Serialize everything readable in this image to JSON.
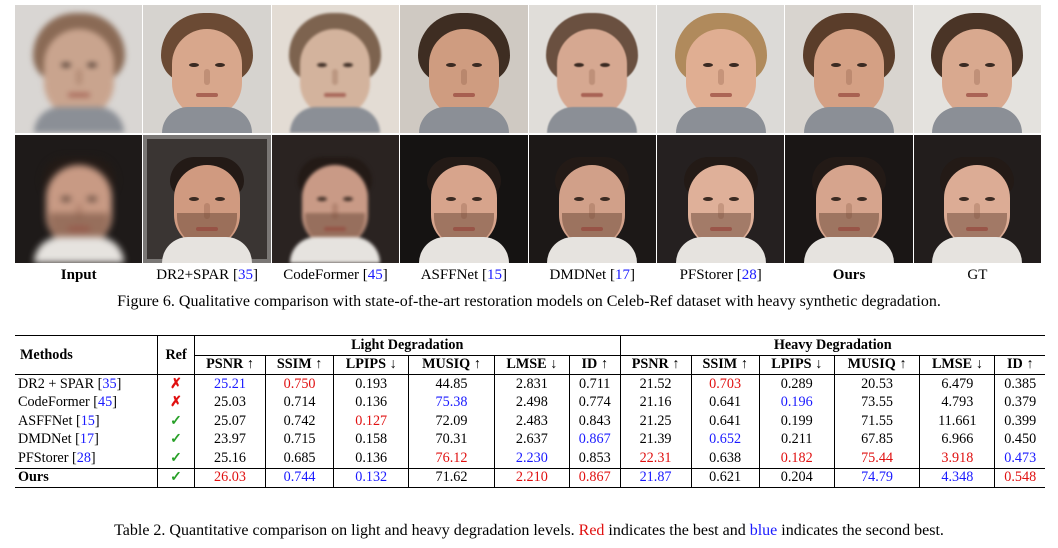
{
  "figure": {
    "columns": [
      {
        "name": "Input",
        "ref": "",
        "bold": true
      },
      {
        "name": "DR2+SPAR",
        "ref": "35",
        "bold": false
      },
      {
        "name": "CodeFormer",
        "ref": "45",
        "bold": false
      },
      {
        "name": "ASFFNet",
        "ref": "15",
        "bold": false
      },
      {
        "name": "DMDNet",
        "ref": "17",
        "bold": false
      },
      {
        "name": "PFStorer",
        "ref": "28",
        "bold": false
      },
      {
        "name": "Ours",
        "ref": "",
        "bold": true
      },
      {
        "name": "GT",
        "ref": "",
        "bold": false
      }
    ],
    "caption": "Figure 6. Qualitative comparison with state-of-the-art restoration models on Celeb-Ref dataset with heavy synthetic degradation."
  },
  "table": {
    "header": {
      "methods": "Methods",
      "ref": "Ref",
      "light": "Light Degradation",
      "heavy": "Heavy Degradation",
      "metrics": [
        {
          "name": "PSNR",
          "dir": "up"
        },
        {
          "name": "SSIM",
          "dir": "up"
        },
        {
          "name": "LPIPS",
          "dir": "down"
        },
        {
          "name": "MUSIQ",
          "dir": "up"
        },
        {
          "name": "LMSE",
          "dir": "down"
        },
        {
          "name": "ID",
          "dir": "up"
        }
      ]
    },
    "rows": [
      {
        "method": "DR2 + SPAR",
        "cite": "35",
        "ref": "cross",
        "light": [
          [
            "25.21",
            "blue"
          ],
          [
            "0.750",
            "red"
          ],
          [
            "0.193",
            ""
          ],
          [
            "44.85",
            ""
          ],
          [
            "2.831",
            ""
          ],
          [
            "0.711",
            ""
          ]
        ],
        "heavy": [
          [
            "21.52",
            ""
          ],
          [
            "0.703",
            "red"
          ],
          [
            "0.289",
            ""
          ],
          [
            "20.53",
            ""
          ],
          [
            "6.479",
            ""
          ],
          [
            "0.385",
            ""
          ]
        ]
      },
      {
        "method": "CodeFormer",
        "cite": "45",
        "ref": "cross",
        "light": [
          [
            "25.03",
            ""
          ],
          [
            "0.714",
            ""
          ],
          [
            "0.136",
            ""
          ],
          [
            "75.38",
            "blue"
          ],
          [
            "2.498",
            ""
          ],
          [
            "0.774",
            ""
          ]
        ],
        "heavy": [
          [
            "21.16",
            ""
          ],
          [
            "0.641",
            ""
          ],
          [
            "0.196",
            "blue"
          ],
          [
            "73.55",
            ""
          ],
          [
            "4.793",
            ""
          ],
          [
            "0.379",
            ""
          ]
        ]
      },
      {
        "method": "ASFFNet",
        "cite": "15",
        "ref": "check",
        "light": [
          [
            "25.07",
            ""
          ],
          [
            "0.742",
            ""
          ],
          [
            "0.127",
            "red"
          ],
          [
            "72.09",
            ""
          ],
          [
            "2.483",
            ""
          ],
          [
            "0.843",
            ""
          ]
        ],
        "heavy": [
          [
            "21.25",
            ""
          ],
          [
            "0.641",
            ""
          ],
          [
            "0.199",
            ""
          ],
          [
            "71.55",
            ""
          ],
          [
            "11.661",
            ""
          ],
          [
            "0.399",
            ""
          ]
        ]
      },
      {
        "method": "DMDNet",
        "cite": "17",
        "ref": "check",
        "light": [
          [
            "23.97",
            ""
          ],
          [
            "0.715",
            ""
          ],
          [
            "0.158",
            ""
          ],
          [
            "70.31",
            ""
          ],
          [
            "2.637",
            ""
          ],
          [
            "0.867",
            "blue"
          ]
        ],
        "heavy": [
          [
            "21.39",
            ""
          ],
          [
            "0.652",
            "blue"
          ],
          [
            "0.211",
            ""
          ],
          [
            "67.85",
            ""
          ],
          [
            "6.966",
            ""
          ],
          [
            "0.450",
            ""
          ]
        ]
      },
      {
        "method": "PFStorer",
        "cite": "28",
        "ref": "check",
        "light": [
          [
            "25.16",
            ""
          ],
          [
            "0.685",
            ""
          ],
          [
            "0.136",
            ""
          ],
          [
            "76.12",
            "red"
          ],
          [
            "2.230",
            "blue"
          ],
          [
            "0.853",
            ""
          ]
        ],
        "heavy": [
          [
            "22.31",
            "red"
          ],
          [
            "0.638",
            ""
          ],
          [
            "0.182",
            "red"
          ],
          [
            "75.44",
            "red"
          ],
          [
            "3.918",
            "red"
          ],
          [
            "0.473",
            "blue"
          ]
        ]
      },
      {
        "method": "Ours",
        "cite": "",
        "ref": "check",
        "bold": true,
        "light": [
          [
            "26.03",
            "red"
          ],
          [
            "0.744",
            "blue"
          ],
          [
            "0.132",
            "blue"
          ],
          [
            "71.62",
            ""
          ],
          [
            "2.210",
            "red"
          ],
          [
            "0.867",
            "red"
          ]
        ],
        "heavy": [
          [
            "21.87",
            "blue"
          ],
          [
            "0.621",
            ""
          ],
          [
            "0.204",
            ""
          ],
          [
            "74.79",
            "blue"
          ],
          [
            "4.348",
            "blue"
          ],
          [
            "0.548",
            "red"
          ]
        ]
      }
    ],
    "caption_parts": {
      "before": "Table 2. Quantitative comparison on light and heavy degradation levels. ",
      "red_word": "Red",
      "middle": " indicates the best and ",
      "blue_word": "blue",
      "after": " indicates the second best."
    }
  },
  "colors": {
    "best": "#e01010",
    "second": "#1a1aff",
    "check": "#28a028"
  }
}
